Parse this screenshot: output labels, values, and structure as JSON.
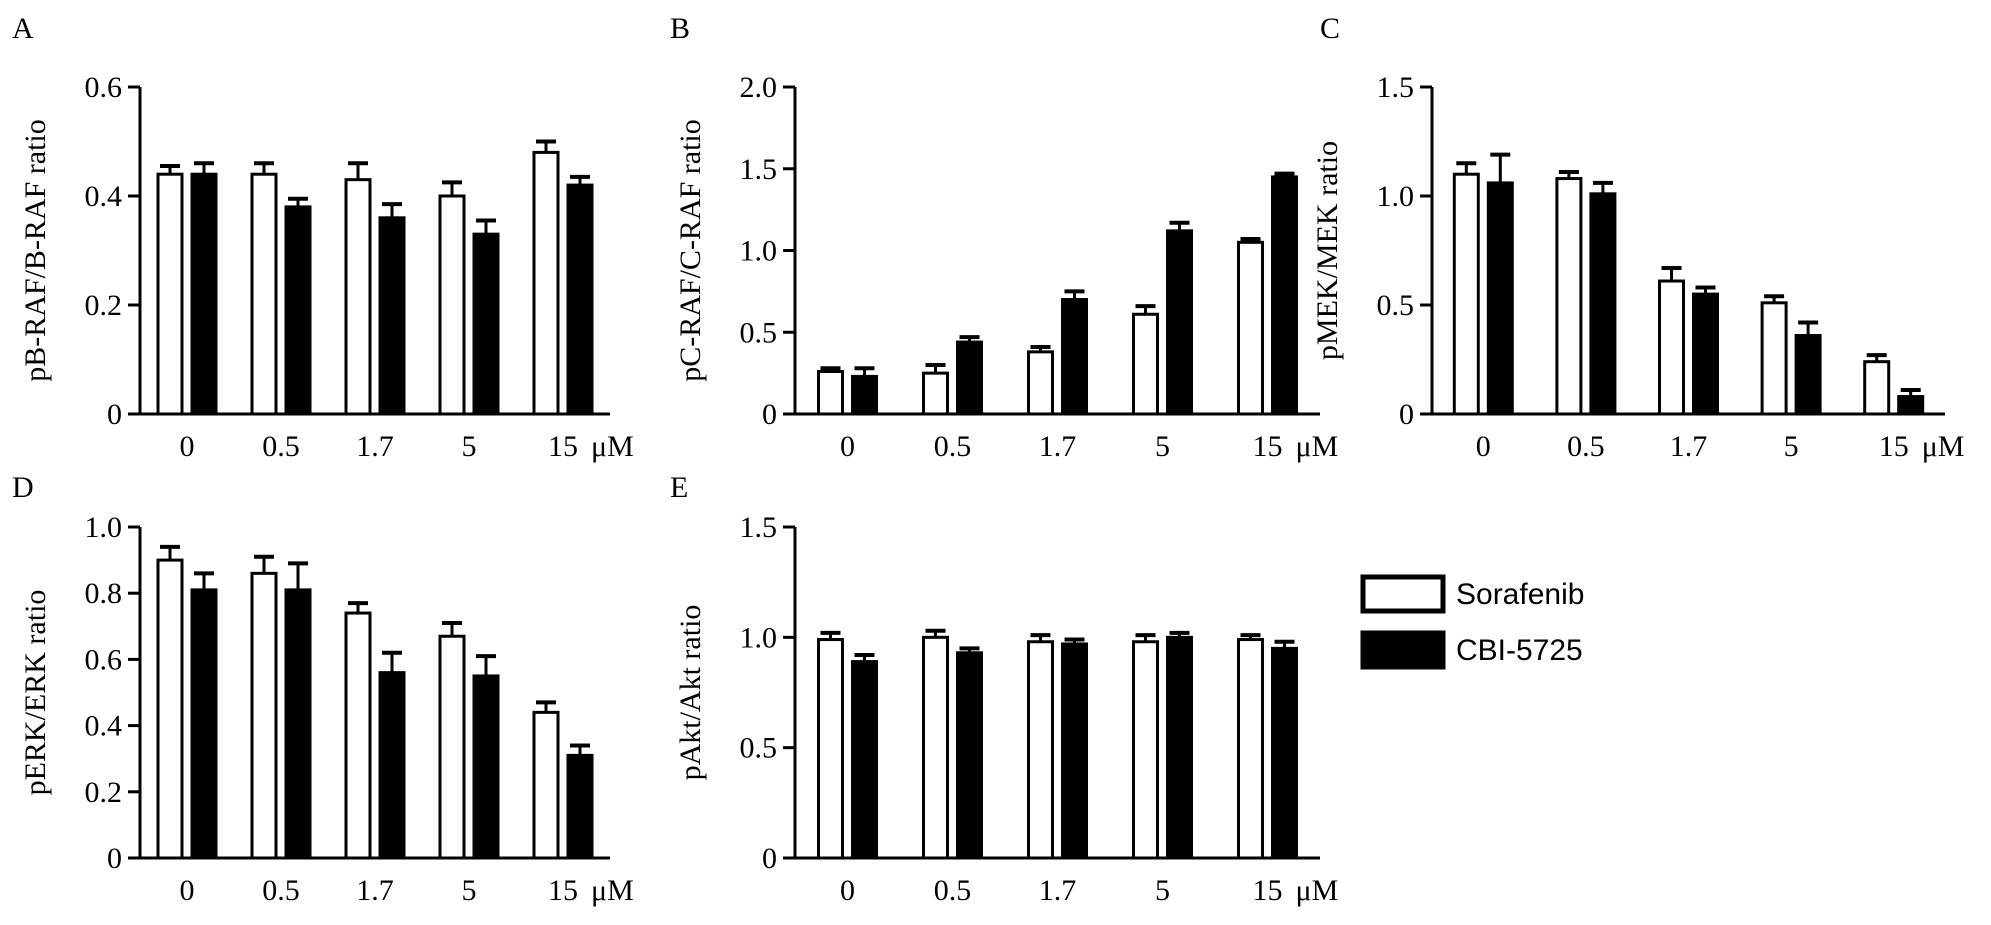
{
  "legend": {
    "items": [
      {
        "label": "Sorafenib",
        "fill": "#ffffff"
      },
      {
        "label": "CBI-5725",
        "fill": "#000000"
      }
    ]
  },
  "colors": {
    "sorafenib": "#ffffff",
    "cbi": "#000000",
    "stroke": "#000000"
  },
  "chart_data": [
    {
      "panel": "A",
      "type": "bar",
      "ylabel": "pB-RAF/B-RAF ratio",
      "categories": [
        "0",
        "0.5",
        "1.7",
        "5",
        "15"
      ],
      "x_unit": "μM",
      "ylim": [
        0,
        0.6
      ],
      "yticks": [
        "0",
        "0.2",
        "0.4",
        "0.6"
      ],
      "series": [
        {
          "name": "Sorafenib",
          "values": [
            0.44,
            0.44,
            0.43,
            0.4,
            0.48
          ],
          "errors": [
            0.015,
            0.02,
            0.03,
            0.025,
            0.02
          ]
        },
        {
          "name": "CBI-5725",
          "values": [
            0.44,
            0.38,
            0.36,
            0.33,
            0.42
          ],
          "errors": [
            0.02,
            0.015,
            0.025,
            0.025,
            0.015
          ]
        }
      ]
    },
    {
      "panel": "B",
      "type": "bar",
      "ylabel": "pC-RAF/C-RAF ratio",
      "categories": [
        "0",
        "0.5",
        "1.7",
        "5",
        "15"
      ],
      "x_unit": "μM",
      "ylim": [
        0,
        2.0
      ],
      "yticks": [
        "0",
        "0.5",
        "1.0",
        "1.5",
        "2.0"
      ],
      "series": [
        {
          "name": "Sorafenib",
          "values": [
            0.26,
            0.25,
            0.38,
            0.61,
            1.05
          ],
          "errors": [
            0.02,
            0.05,
            0.03,
            0.05,
            0.02
          ]
        },
        {
          "name": "CBI-5725",
          "values": [
            0.23,
            0.44,
            0.7,
            1.12,
            1.45
          ],
          "errors": [
            0.05,
            0.03,
            0.05,
            0.05,
            0.02
          ]
        }
      ]
    },
    {
      "panel": "C",
      "type": "bar",
      "ylabel": "pMEK/MEK ratio",
      "categories": [
        "0",
        "0.5",
        "1.7",
        "5",
        "15"
      ],
      "x_unit": "μM",
      "ylim": [
        0,
        1.5
      ],
      "yticks": [
        "0",
        "0.5",
        "1.0",
        "1.5"
      ],
      "series": [
        {
          "name": "Sorafenib",
          "values": [
            1.1,
            1.08,
            0.61,
            0.51,
            0.24
          ],
          "errors": [
            0.05,
            0.03,
            0.06,
            0.03,
            0.03
          ]
        },
        {
          "name": "CBI-5725",
          "values": [
            1.06,
            1.01,
            0.55,
            0.36,
            0.08
          ],
          "errors": [
            0.13,
            0.05,
            0.03,
            0.06,
            0.03
          ]
        }
      ]
    },
    {
      "panel": "D",
      "type": "bar",
      "ylabel": "pERK/ERK ratio",
      "categories": [
        "0",
        "0.5",
        "1.7",
        "5",
        "15"
      ],
      "x_unit": "μM",
      "ylim": [
        0,
        1.0
      ],
      "yticks": [
        "0",
        "0.2",
        "0.4",
        "0.6",
        "0.8",
        "1.0"
      ],
      "series": [
        {
          "name": "Sorafenib",
          "values": [
            0.9,
            0.86,
            0.74,
            0.67,
            0.44
          ],
          "errors": [
            0.04,
            0.05,
            0.03,
            0.04,
            0.03
          ]
        },
        {
          "name": "CBI-5725",
          "values": [
            0.81,
            0.81,
            0.56,
            0.55,
            0.31
          ],
          "errors": [
            0.05,
            0.08,
            0.06,
            0.06,
            0.03
          ]
        }
      ]
    },
    {
      "panel": "E",
      "type": "bar",
      "ylabel": "pAkt/Akt ratio",
      "categories": [
        "0",
        "0.5",
        "1.7",
        "5",
        "15"
      ],
      "x_unit": "μM",
      "ylim": [
        0,
        1.5
      ],
      "yticks": [
        "0",
        "0.5",
        "1.0",
        "1.5"
      ],
      "series": [
        {
          "name": "Sorafenib",
          "values": [
            0.99,
            1.0,
            0.98,
            0.98,
            0.99
          ],
          "errors": [
            0.03,
            0.03,
            0.03,
            0.03,
            0.02
          ]
        },
        {
          "name": "CBI-5725",
          "values": [
            0.89,
            0.93,
            0.97,
            1.0,
            0.95
          ],
          "errors": [
            0.03,
            0.02,
            0.02,
            0.02,
            0.03
          ]
        }
      ]
    }
  ]
}
